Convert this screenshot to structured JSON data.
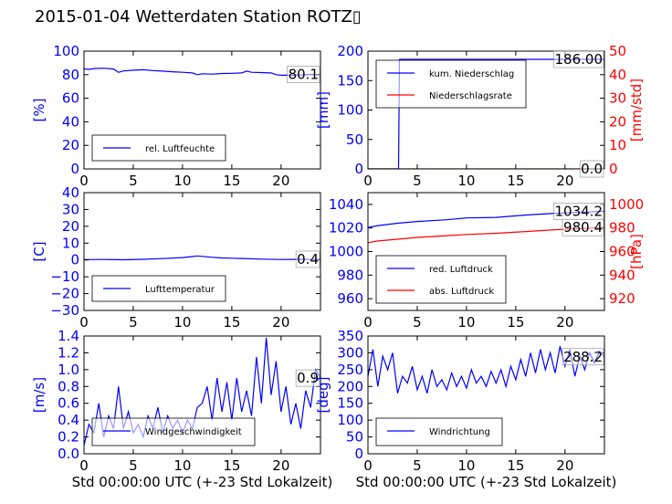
{
  "title": "2015-01-04 Wetterdaten Station ROTZ▯",
  "chart_data": [
    {
      "id": "humidity",
      "type": "line",
      "xlim": [
        0,
        24
      ],
      "xticks": [
        0,
        5,
        10,
        15,
        20
      ],
      "ylim": [
        0,
        100
      ],
      "yticks": [
        0,
        20,
        40,
        60,
        80,
        100
      ],
      "ylabel": "[%]",
      "ylabel_color": "#0000ff",
      "grid": false,
      "legend_position": "lower-left",
      "annotations": [
        {
          "text": "80.1",
          "x": 23.9,
          "y": 80.1
        }
      ],
      "series": [
        {
          "name": "rel. Luftfeuchte",
          "color": "#0000ff",
          "points": [
            [
              0,
              85
            ],
            [
              0.5,
              84.5
            ],
            [
              1,
              85.2
            ],
            [
              2,
              85.5
            ],
            [
              3,
              84.8
            ],
            [
              3.5,
              82
            ],
            [
              4,
              83.2
            ],
            [
              5,
              83.8
            ],
            [
              6,
              84.2
            ],
            [
              7,
              83.5
            ],
            [
              8,
              83
            ],
            [
              9,
              82.5
            ],
            [
              10,
              82
            ],
            [
              11,
              81.5
            ],
            [
              11.5,
              80
            ],
            [
              12,
              80.8
            ],
            [
              13,
              80.5
            ],
            [
              14,
              81
            ],
            [
              15,
              81.2
            ],
            [
              16,
              81.5
            ],
            [
              16.5,
              83
            ],
            [
              17,
              82
            ],
            [
              18,
              81.8
            ],
            [
              19,
              81.5
            ],
            [
              19.5,
              80
            ],
            [
              20,
              79.5
            ],
            [
              21,
              79.5
            ],
            [
              22,
              79.8
            ],
            [
              23,
              80.2
            ],
            [
              24,
              80.1
            ]
          ]
        }
      ]
    },
    {
      "id": "precipitation",
      "type": "line",
      "xlim": [
        0,
        24
      ],
      "xticks": [
        0,
        5,
        10,
        15,
        20
      ],
      "ylim": [
        0,
        200
      ],
      "yticks": [
        0,
        50,
        100,
        150,
        200
      ],
      "ylabel": "[mm]",
      "ylabel_color": "#0000ff",
      "y2lim": [
        0,
        50
      ],
      "y2ticks": [
        0,
        10,
        20,
        30,
        40,
        50
      ],
      "y2label": "[mm/std]",
      "y2label_color": "#ff0000",
      "grid": false,
      "legend_position": "upper-left",
      "annotations": [
        {
          "text": "186.00",
          "x": 23.9,
          "y": 186
        },
        {
          "text": "0.0",
          "x": 23.9,
          "y": 0,
          "axis": "y2"
        }
      ],
      "series": [
        {
          "name": "kum. Niederschlag",
          "color": "#0000ff",
          "axis": "y",
          "points": [
            [
              0,
              0
            ],
            [
              3.1,
              0
            ],
            [
              3.2,
              186
            ],
            [
              24,
              186
            ]
          ]
        },
        {
          "name": "Niederschlagsrate",
          "color": "#ff0000",
          "axis": "y2",
          "points": [
            [
              0,
              0
            ],
            [
              24,
              0
            ]
          ]
        }
      ]
    },
    {
      "id": "temperature",
      "type": "line",
      "xlim": [
        0,
        24
      ],
      "xticks": [
        0,
        5,
        10,
        15,
        20
      ],
      "ylim": [
        -30,
        40
      ],
      "yticks": [
        -30,
        -20,
        -10,
        0,
        10,
        20,
        30,
        40
      ],
      "ylabel": "[C]",
      "ylabel_color": "#0000ff",
      "grid": false,
      "legend_position": "lower-left",
      "annotations": [
        {
          "text": "0.4",
          "x": 23.9,
          "y": 0.4
        }
      ],
      "series": [
        {
          "name": "Lufttemperatur",
          "color": "#0000ff",
          "points": [
            [
              0,
              0.2
            ],
            [
              2,
              0.3
            ],
            [
              4,
              0.1
            ],
            [
              6,
              0.4
            ],
            [
              8,
              0.8
            ],
            [
              10,
              1.4
            ],
            [
              11,
              2.0
            ],
            [
              11.5,
              2.4
            ],
            [
              12,
              2.1
            ],
            [
              13,
              1.6
            ],
            [
              14,
              1.2
            ],
            [
              16,
              0.9
            ],
            [
              18,
              0.5
            ],
            [
              20,
              0.3
            ],
            [
              22,
              0.4
            ],
            [
              23,
              0.3
            ],
            [
              24,
              0.4
            ]
          ]
        }
      ]
    },
    {
      "id": "pressure",
      "type": "line",
      "xlim": [
        0,
        24
      ],
      "xticks": [
        0,
        5,
        10,
        15,
        20
      ],
      "ylim": [
        950,
        1050
      ],
      "yticks": [
        960,
        980,
        1000,
        1020,
        1040
      ],
      "y2lim": [
        910,
        1010
      ],
      "y2ticks": [
        920,
        940,
        960,
        980,
        1000
      ],
      "y2label": "[hPa]",
      "y2label_color": "#ff0000",
      "grid": false,
      "legend_position": "lower-left",
      "annotations": [
        {
          "text": "1034.2",
          "x": 23.9,
          "y": 1034.2
        },
        {
          "text": "980.4",
          "x": 23.9,
          "y": 980.4,
          "axis": "y2"
        }
      ],
      "series": [
        {
          "name": "red. Luftdruck",
          "color": "#0000ff",
          "axis": "y",
          "points": [
            [
              0,
              1020.5
            ],
            [
              1,
              1022
            ],
            [
              3,
              1024
            ],
            [
              5,
              1025.5
            ],
            [
              8,
              1027
            ],
            [
              10,
              1028.5
            ],
            [
              13,
              1029
            ],
            [
              16,
              1031
            ],
            [
              19,
              1032.5
            ],
            [
              22,
              1033.5
            ],
            [
              24,
              1034.2
            ]
          ]
        },
        {
          "name": "abs. Luftdruck",
          "color": "#ff0000",
          "axis": "y2",
          "points": [
            [
              0,
              967.5
            ],
            [
              1,
              969
            ],
            [
              3,
              970.5
            ],
            [
              5,
              972
            ],
            [
              8,
              973.5
            ],
            [
              10,
              974.5
            ],
            [
              13,
              975.5
            ],
            [
              16,
              977
            ],
            [
              19,
              978.5
            ],
            [
              22,
              979.7
            ],
            [
              24,
              980.4
            ]
          ]
        }
      ]
    },
    {
      "id": "windspeed",
      "type": "line",
      "xlim": [
        0,
        24
      ],
      "xticks": [
        0,
        5,
        10,
        15,
        20
      ],
      "xlabel": "Std 00:00:00 UTC (+-23 Std Lokalzeit)",
      "ylim": [
        0,
        1.4
      ],
      "yticks": [
        0.0,
        0.2,
        0.4,
        0.6,
        0.8,
        1.0,
        1.2,
        1.4
      ],
      "ylabel": "[m/s]",
      "ylabel_color": "#0000ff",
      "grid": false,
      "legend_position": "lower-center",
      "annotations": [
        {
          "text": "0.9",
          "x": 23.9,
          "y": 0.9
        }
      ],
      "series": [
        {
          "name": "Windgeschwindigkeit",
          "color": "#0000ff",
          "points": [
            [
              0,
              0.1
            ],
            [
              0.5,
              0.35
            ],
            [
              1,
              0.25
            ],
            [
              1.5,
              0.6
            ],
            [
              2,
              0.2
            ],
            [
              2.5,
              0.45
            ],
            [
              3,
              0.3
            ],
            [
              3.5,
              0.8
            ],
            [
              4,
              0.3
            ],
            [
              4.5,
              0.5
            ],
            [
              5,
              0.25
            ],
            [
              5.5,
              0.35
            ],
            [
              6,
              0.2
            ],
            [
              6.5,
              0.45
            ],
            [
              7,
              0.3
            ],
            [
              7.5,
              0.55
            ],
            [
              8,
              0.25
            ],
            [
              8.5,
              0.45
            ],
            [
              9,
              0.3
            ],
            [
              9.5,
              0.4
            ],
            [
              10,
              0.25
            ],
            [
              10.5,
              0.4
            ],
            [
              11,
              0.3
            ],
            [
              11.5,
              0.55
            ],
            [
              12,
              0.6
            ],
            [
              12.5,
              0.8
            ],
            [
              13,
              0.4
            ],
            [
              13.5,
              0.9
            ],
            [
              14,
              0.5
            ],
            [
              14.5,
              0.85
            ],
            [
              15,
              0.4
            ],
            [
              15.5,
              0.9
            ],
            [
              16,
              0.5
            ],
            [
              16.5,
              0.75
            ],
            [
              17,
              0.45
            ],
            [
              17.5,
              1.15
            ],
            [
              18,
              0.6
            ],
            [
              18.5,
              1.38
            ],
            [
              19,
              0.7
            ],
            [
              19.5,
              1.1
            ],
            [
              20,
              0.5
            ],
            [
              20.5,
              0.8
            ],
            [
              21,
              0.35
            ],
            [
              21.5,
              0.6
            ],
            [
              22,
              0.3
            ],
            [
              22.5,
              0.75
            ],
            [
              23,
              0.55
            ],
            [
              23.5,
              1.0
            ],
            [
              24,
              0.9
            ]
          ]
        }
      ]
    },
    {
      "id": "winddirection",
      "type": "line",
      "xlim": [
        0,
        24
      ],
      "xticks": [
        0,
        5,
        10,
        15,
        20
      ],
      "xlabel": "Std 00:00:00 UTC (+-23 Std Lokalzeit)",
      "ylim": [
        0,
        350
      ],
      "yticks": [
        0,
        50,
        100,
        150,
        200,
        250,
        300,
        350
      ],
      "ylabel": "[deg]",
      "ylabel_color": "#0000ff",
      "grid": false,
      "legend_position": "lower-left",
      "annotations": [
        {
          "text": "288.2",
          "x": 23.9,
          "y": 288.2
        }
      ],
      "series": [
        {
          "name": "Windrichtung",
          "color": "#0000ff",
          "points": [
            [
              0,
              230
            ],
            [
              0.5,
              310
            ],
            [
              1,
              200
            ],
            [
              1.5,
              290
            ],
            [
              2,
              250
            ],
            [
              2.5,
              300
            ],
            [
              3,
              180
            ],
            [
              3.5,
              230
            ],
            [
              4,
              210
            ],
            [
              4.5,
              260
            ],
            [
              5,
              190
            ],
            [
              5.5,
              230
            ],
            [
              6,
              180
            ],
            [
              6.5,
              250
            ],
            [
              7,
              200
            ],
            [
              7.5,
              220
            ],
            [
              8,
              190
            ],
            [
              8.5,
              240
            ],
            [
              9,
              200
            ],
            [
              9.5,
              230
            ],
            [
              10,
              195
            ],
            [
              10.5,
              250
            ],
            [
              11,
              210
            ],
            [
              11.5,
              230
            ],
            [
              12,
              200
            ],
            [
              12.5,
              245
            ],
            [
              13,
              210
            ],
            [
              13.5,
              250
            ],
            [
              14,
              200
            ],
            [
              14.5,
              260
            ],
            [
              15,
              220
            ],
            [
              15.5,
              280
            ],
            [
              16,
              230
            ],
            [
              16.5,
              300
            ],
            [
              17,
              240
            ],
            [
              17.5,
              310
            ],
            [
              18,
              250
            ],
            [
              18.5,
              300
            ],
            [
              19,
              240
            ],
            [
              19.5,
              320
            ],
            [
              20,
              260
            ],
            [
              20.5,
              310
            ],
            [
              21,
              230
            ],
            [
              21.5,
              290
            ],
            [
              22,
              250
            ],
            [
              22.5,
              300
            ],
            [
              23,
              270
            ],
            [
              23.5,
              305
            ],
            [
              24,
              288
            ]
          ]
        }
      ]
    }
  ]
}
